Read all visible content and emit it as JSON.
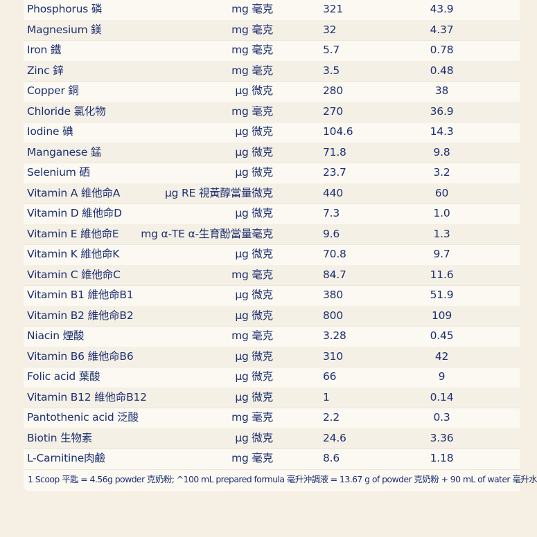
{
  "table": {
    "rows": [
      {
        "name": "Phosphorus 磷",
        "unit": "mg 毫克",
        "v1": "321",
        "v2": "43.9"
      },
      {
        "name": "Magnesium 鎂",
        "unit": "mg 毫克",
        "v1": "32",
        "v2": "4.37"
      },
      {
        "name": "Iron 鐵",
        "unit": "mg 毫克",
        "v1": "5.7",
        "v2": "0.78"
      },
      {
        "name": "Zinc 鋅",
        "unit": "mg 毫克",
        "v1": "3.5",
        "v2": "0.48"
      },
      {
        "name": "Copper 銅",
        "unit": "μg 微克",
        "v1": "280",
        "v2": "38"
      },
      {
        "name": "Chloride 氯化物",
        "unit": "mg 毫克",
        "v1": "270",
        "v2": "36.9"
      },
      {
        "name": "Iodine 碘",
        "unit": "μg 微克",
        "v1": "104.6",
        "v2": "14.3"
      },
      {
        "name": "Manganese 錳",
        "unit": "μg 微克",
        "v1": "71.8",
        "v2": "9.8"
      },
      {
        "name": "Selenium 硒",
        "unit": "μg 微克",
        "v1": "23.7",
        "v2": "3.2"
      },
      {
        "name": "Vitamin A 維他命A",
        "unit": "μg RE 視黃醇當量微克",
        "v1": "440",
        "v2": "60"
      },
      {
        "name": " Vitamin D  維他命D",
        "unit": "μg 微克",
        "v1": "7.3",
        "v2": "1.0"
      },
      {
        "name": "Vitamin E 維他命E",
        "unit": "mg α-TE α-生育酚當量毫克",
        "v1": "9.6",
        "v2": "1.3"
      },
      {
        "name": "Vitamin K 維他命K",
        "unit": "μg 微克",
        "v1": "70.8",
        "v2": "9.7"
      },
      {
        "name": "Vitamin C 維他命C",
        "unit": "mg 毫克",
        "v1": "84.7",
        "v2": "11.6"
      },
      {
        "name": "Vitamin B1 維他命B1",
        "unit": "μg 微克",
        "v1": "380",
        "v2": "51.9"
      },
      {
        "name": "Vitamin B2 維他命B2",
        "unit": "μg 微克",
        "v1": "800",
        "v2": "109"
      },
      {
        "name": "Niacin 煙酸",
        "unit": "mg 毫克",
        "v1": "3.28",
        "v2": "0.45"
      },
      {
        "name": "Vitamin B6 維他命B6",
        "unit": "μg 微克",
        "v1": "310",
        "v2": "42"
      },
      {
        "name": "Folic acid 葉酸",
        "unit": "μg 微克",
        "v1": "66",
        "v2": "9"
      },
      {
        "name": "Vitamin B12 維他命B12",
        "unit": "μg 微克",
        "v1": "1",
        "v2": "0.14"
      },
      {
        "name": "Pantothenic acid 泛酸",
        "unit": "mg 毫克",
        "v1": "2.2",
        "v2": "0.3"
      },
      {
        "name": "Biotin 生物素",
        "unit": "μg 微克",
        "v1": "24.6",
        "v2": "3.36"
      },
      {
        "name": "L-Carnitine肉鹼",
        "unit": "mg 毫克",
        "v1": "8.6",
        "v2": "1.18"
      }
    ]
  },
  "footnote": "1 Scoop 平匙 = 4.56g powder 克奶粉; ^100 mL prepared formula 毫升沖調液 = 13.67 g of powder 克奶粉 + 90 mL of water 毫升水",
  "colors": {
    "text": "#1b2f72",
    "panel": "#fcf9f2",
    "background": "#f6efe4"
  }
}
